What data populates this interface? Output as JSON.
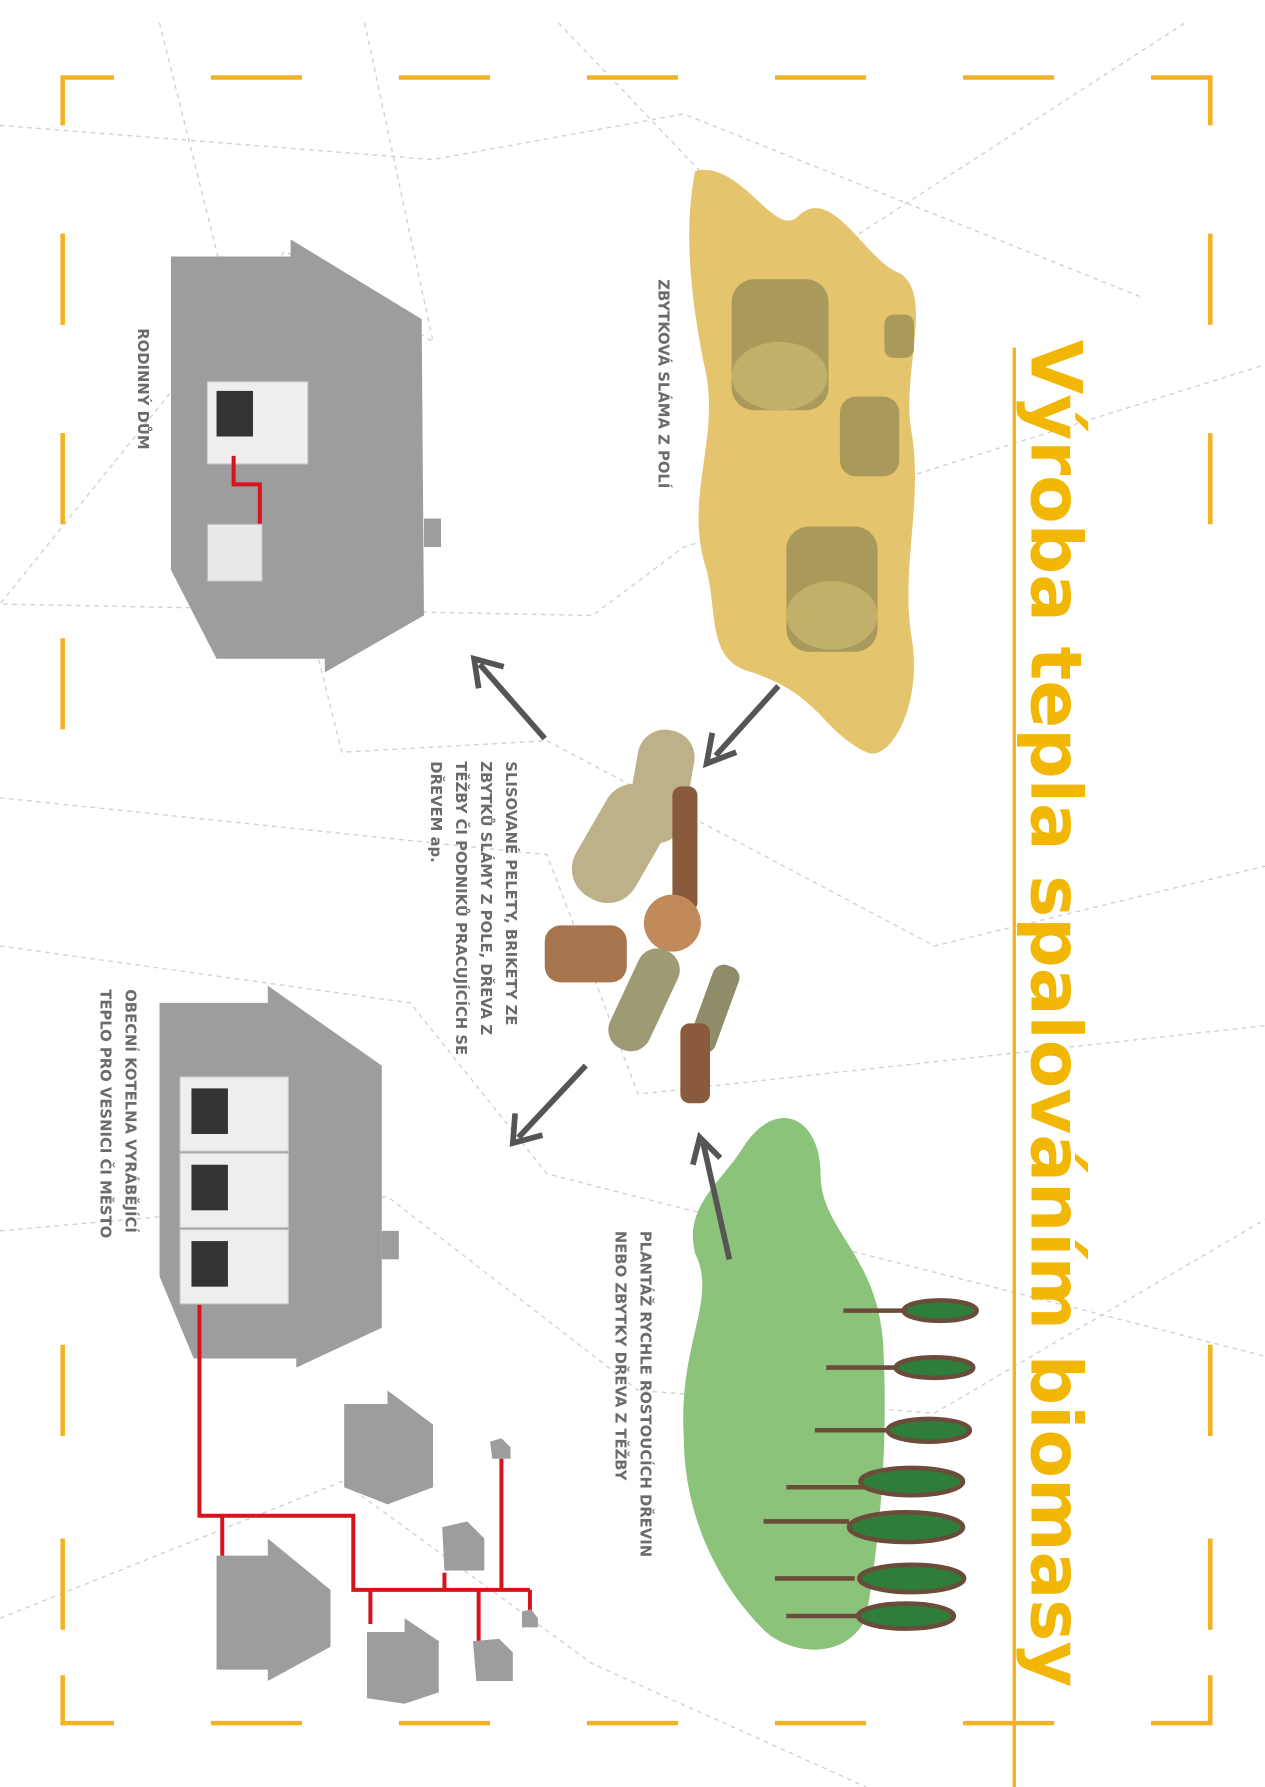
{
  "title": "Výroba tepla spalováním biomasy",
  "labels": {
    "straw": [
      "ZBYTKOVÁ SLÁMA Z POLÍ"
    ],
    "family_house": [
      "RODINNÝ DŮM"
    ],
    "pellets": [
      "SLISOVANÉ PELETY, BRIKETY ZE",
      "ZBYTKŮ SLÁMY Z POLE, DŘEVA Z",
      "TĚŽBY ČI PODNIKŮ PRACUJÍCÍCH SE",
      "DŘEVEM ap."
    ],
    "boiler_house": [
      "OBECNÍ KOTELNA VYRÁBĚJÍCÍ",
      "TEPLO PRO VESNICI ČI MĚSTO"
    ],
    "plantation": [
      "PLANTÁŽ RYCHLE ROSTOUCÍCH DŘEVIN",
      "NEBO ZBYTKY DŘEVA Z TĚŽBY"
    ]
  }
}
